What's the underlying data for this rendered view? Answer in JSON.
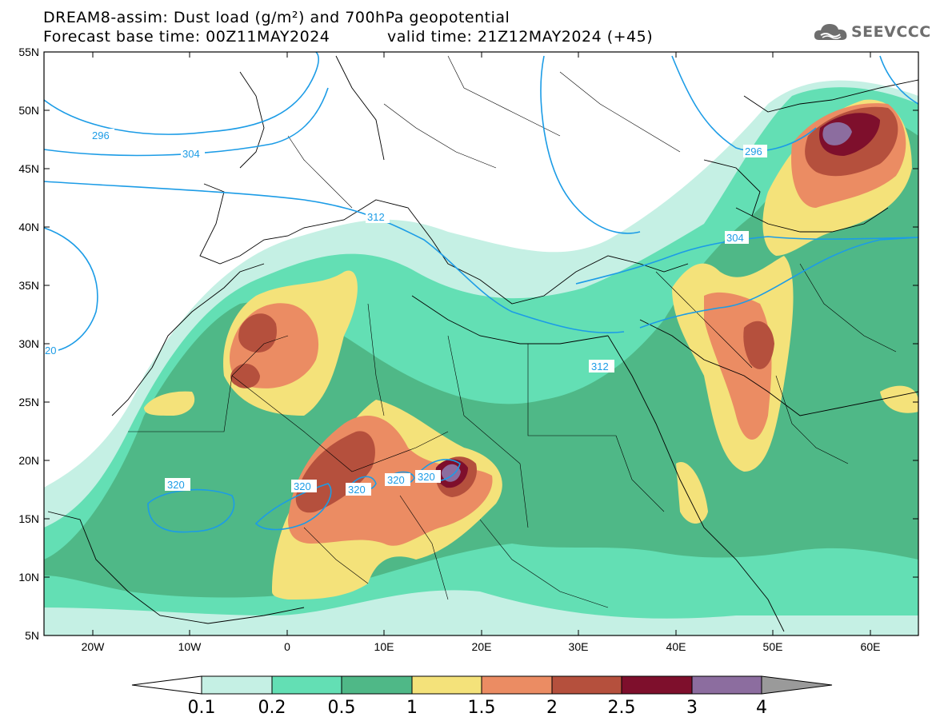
{
  "header": {
    "title_line1": "DREAM8-assim: Dust load (g/m²) and 700hPa geopotential",
    "base_time": "Forecast base time: 00Z11MAY2024",
    "valid_time": "valid time: 21Z12MAY2024 (+45)"
  },
  "logo": {
    "text": "SEEVCCC",
    "icon": "cloud-icon"
  },
  "axes": {
    "lat_labels": [
      "55N",
      "50N",
      "45N",
      "40N",
      "35N",
      "30N",
      "25N",
      "20N",
      "15N",
      "10N",
      "5N"
    ],
    "lon_labels": [
      "20W",
      "10W",
      "0",
      "10E",
      "20E",
      "30E",
      "40E",
      "50E",
      "60E"
    ]
  },
  "contours": {
    "labels": [
      "296",
      "304",
      "312",
      "320",
      "320",
      "320",
      "320",
      "320",
      "296",
      "304",
      "312",
      "20"
    ]
  },
  "colorbar": {
    "ticks": [
      "0.1",
      "0.2",
      "0.5",
      "1",
      "1.5",
      "2",
      "2.5",
      "3",
      "4"
    ],
    "colors": [
      "#c5f0e4",
      "#63dfb4",
      "#4fb887",
      "#f4e27a",
      "#eb8c63",
      "#b5503d",
      "#7e0f2c",
      "#8c6d9f"
    ],
    "under_color": "#ffffff",
    "over_color": "#9a9a9a"
  },
  "colors": {
    "contour": "#1c9ce6",
    "coast": "#000000"
  }
}
